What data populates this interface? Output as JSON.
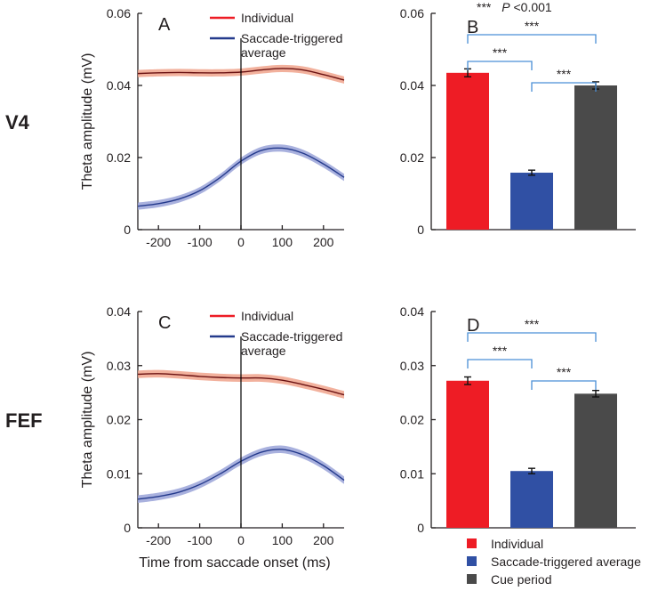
{
  "figure": {
    "row_labels": [
      "V4",
      "FEF"
    ],
    "shared_xlabel": "Time from saccade onset (ms)",
    "significance_note": {
      "stars": "***",
      "p_symbol": "P",
      "p_value": " <0.001"
    },
    "colors": {
      "individual_line": "#6b1212",
      "individual_band": "#f0a38c",
      "sta_line": "#243a8c",
      "sta_band": "#9aa3d8",
      "bar_individual": "#ee1c25",
      "bar_sta": "#3050a4",
      "bar_cue": "#4a4a4a",
      "bracket": "#4a8fd6",
      "axis": "#231f20"
    }
  },
  "chart_data": [
    {
      "panel": "A",
      "type": "line",
      "ylabel": "Theta amplitude (mV)",
      "xlim": [
        -250,
        250
      ],
      "ylim": [
        0,
        0.06
      ],
      "xticks": [
        -200,
        -100,
        0,
        100,
        200
      ],
      "xtick_labels": [
        "-200",
        "-100",
        "0",
        "100",
        "200"
      ],
      "yticks": [
        0,
        0.02,
        0.04,
        0.06
      ],
      "ytick_labels": [
        "0",
        "0.02",
        "0.04",
        "0.06"
      ],
      "legend": [
        "Individual",
        "Saccade-triggered",
        "average"
      ],
      "series": [
        {
          "name": "Individual",
          "x": [
            -250,
            -200,
            -150,
            -100,
            -50,
            0,
            50,
            100,
            150,
            200,
            250
          ],
          "y": [
            0.0433,
            0.0435,
            0.0436,
            0.0435,
            0.0435,
            0.0437,
            0.0443,
            0.0447,
            0.0443,
            0.043,
            0.0415
          ],
          "band": 0.001
        },
        {
          "name": "Saccade-triggered average",
          "x": [
            -250,
            -200,
            -150,
            -100,
            -50,
            0,
            50,
            100,
            150,
            200,
            250
          ],
          "y": [
            0.0065,
            0.0072,
            0.0085,
            0.0108,
            0.0145,
            0.019,
            0.022,
            0.0226,
            0.0212,
            0.0182,
            0.0145
          ],
          "band": 0.001
        }
      ]
    },
    {
      "panel": "B",
      "type": "bar",
      "ylim": [
        0,
        0.06
      ],
      "yticks": [
        0,
        0.02,
        0.04,
        0.06
      ],
      "ytick_labels": [
        "0",
        "0.02",
        "0.04",
        "0.06"
      ],
      "categories": [
        "Individual",
        "Saccade-triggered average",
        "Cue period"
      ],
      "values": [
        0.0435,
        0.0158,
        0.04
      ],
      "errors": [
        0.0011,
        0.0007,
        0.001
      ],
      "comparisons": [
        {
          "between": [
            0,
            2
          ],
          "label": "***"
        },
        {
          "between": [
            0,
            1
          ],
          "label": "***"
        },
        {
          "between": [
            1,
            2
          ],
          "label": "***"
        }
      ]
    },
    {
      "panel": "C",
      "type": "line",
      "ylabel": "Theta amplitude (mV)",
      "xlim": [
        -250,
        250
      ],
      "ylim": [
        0,
        0.04
      ],
      "xticks": [
        -200,
        -100,
        0,
        100,
        200
      ],
      "xtick_labels": [
        "-200",
        "-100",
        "0",
        "100",
        "200"
      ],
      "yticks": [
        0,
        0.01,
        0.02,
        0.03,
        0.04
      ],
      "ytick_labels": [
        "0",
        "0.01",
        "0.02",
        "0.03",
        "0.04"
      ],
      "legend": [
        "Individual",
        "Saccade-triggered",
        "average"
      ],
      "series": [
        {
          "name": "Individual",
          "x": [
            -250,
            -200,
            -150,
            -100,
            -50,
            0,
            50,
            100,
            150,
            200,
            250
          ],
          "y": [
            0.0284,
            0.0285,
            0.0283,
            0.028,
            0.0278,
            0.0277,
            0.0277,
            0.0273,
            0.0265,
            0.0256,
            0.0246
          ],
          "band": 0.0007
        },
        {
          "name": "Saccade-triggered average",
          "x": [
            -250,
            -200,
            -150,
            -100,
            -50,
            0,
            50,
            100,
            150,
            200,
            250
          ],
          "y": [
            0.0053,
            0.0058,
            0.0066,
            0.008,
            0.01,
            0.0123,
            0.014,
            0.0145,
            0.0135,
            0.0115,
            0.0088
          ],
          "band": 0.0007
        }
      ]
    },
    {
      "panel": "D",
      "type": "bar",
      "ylim": [
        0,
        0.04
      ],
      "yticks": [
        0,
        0.01,
        0.02,
        0.03,
        0.04
      ],
      "ytick_labels": [
        "0",
        "0.01",
        "0.02",
        "0.03",
        "0.04"
      ],
      "categories": [
        "Individual",
        "Saccade-triggered average",
        "Cue period"
      ],
      "values": [
        0.0272,
        0.0105,
        0.0248
      ],
      "errors": [
        0.0007,
        0.0005,
        0.0006
      ],
      "comparisons": [
        {
          "between": [
            0,
            2
          ],
          "label": "***"
        },
        {
          "between": [
            0,
            1
          ],
          "label": "***"
        },
        {
          "between": [
            1,
            2
          ],
          "label": "***"
        }
      ]
    }
  ],
  "bar_legend": [
    "Individual",
    "Saccade-triggered average",
    "Cue period"
  ]
}
